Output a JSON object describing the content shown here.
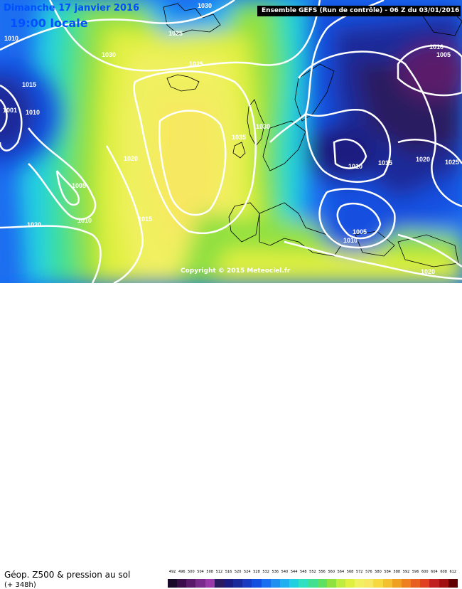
{
  "header": {
    "date": "Dimanche 17 janvier 2016",
    "local_time": "19:00 locale",
    "run_info": "Ensemble GEFS  (Run de contrôle)  - 06 Z du 03/01/2016",
    "copyright": "Copyright © 2015 Meteociel.fr"
  },
  "footer": {
    "product": "Géop. Z500 & pression au sol",
    "lead": "(+ 348h)"
  },
  "color_scale": {
    "values": [
      "492",
      "496",
      "500",
      "504",
      "508",
      "512",
      "516",
      "520",
      "524",
      "528",
      "532",
      "536",
      "540",
      "544",
      "548",
      "552",
      "556",
      "560",
      "564",
      "568",
      "572",
      "576",
      "580",
      "584",
      "588",
      "592",
      "596",
      "600",
      "604",
      "608",
      "612"
    ],
    "colors": [
      "#1a0a2a",
      "#3a0d4a",
      "#5a1a6a",
      "#7a2a8a",
      "#9a3aaa",
      "#2a1a60",
      "#1c1c80",
      "#1a2a9a",
      "#1a3ac0",
      "#1450e0",
      "#1a6ef0",
      "#2090f0",
      "#20b0f0",
      "#20d0e0",
      "#30e0c0",
      "#40e090",
      "#60e060",
      "#90e040",
      "#c0ec40",
      "#e0f040",
      "#f0f060",
      "#f6e860",
      "#f6d840",
      "#f2c030",
      "#f0a020",
      "#ee8020",
      "#e86020",
      "#e04020",
      "#c02020",
      "#a01010",
      "#600000"
    ]
  },
  "isobar_labels": [
    {
      "text": "1030",
      "role": "isobar-label"
    },
    {
      "text": "1010",
      "role": "isobar-label"
    },
    {
      "text": "1030",
      "role": "isobar-label"
    },
    {
      "text": "1025",
      "role": "isobar-label"
    },
    {
      "text": "1015",
      "role": "isobar-label"
    },
    {
      "text": "1025",
      "role": "isobar-label"
    },
    {
      "text": "1001",
      "role": "isobar-label"
    },
    {
      "text": "1010",
      "role": "isobar-label"
    },
    {
      "text": "1020",
      "role": "isobar-label"
    },
    {
      "text": "1005",
      "role": "isobar-label"
    },
    {
      "text": "1020",
      "role": "isobar-label"
    },
    {
      "text": "1010",
      "role": "isobar-label"
    },
    {
      "text": "1015",
      "role": "isobar-label"
    },
    {
      "text": "1035",
      "role": "isobar-label"
    },
    {
      "text": "1030",
      "role": "isobar-label"
    },
    {
      "text": "1010",
      "role": "isobar-label"
    },
    {
      "text": "1005",
      "role": "isobar-label"
    },
    {
      "text": "1015",
      "role": "isobar-label"
    },
    {
      "text": "1020",
      "role": "isobar-label"
    },
    {
      "text": "1025",
      "role": "isobar-label"
    },
    {
      "text": "1010",
      "role": "isobar-label"
    },
    {
      "text": "1005",
      "role": "isobar-label"
    },
    {
      "text": "1010",
      "role": "isobar-label"
    },
    {
      "text": "1020",
      "role": "isobar-label"
    }
  ]
}
